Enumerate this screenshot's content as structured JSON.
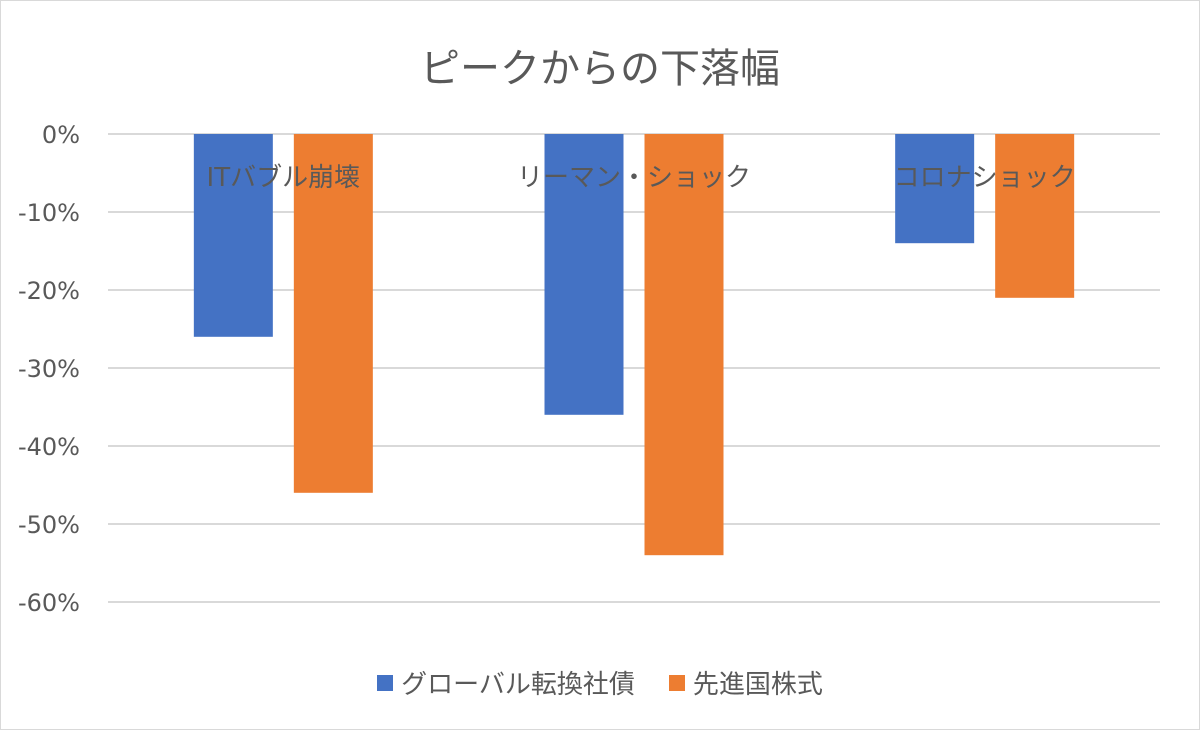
{
  "chart_data": {
    "type": "bar",
    "title": "ピークからの下落幅",
    "categories": [
      "ITバブル崩壊",
      "リーマン・ショック",
      "コロナショック"
    ],
    "series": [
      {
        "name": "グローバル転換社債",
        "color": "#4472c4",
        "values": [
          -26,
          -36,
          -14
        ]
      },
      {
        "name": "先進国株式",
        "color": "#ed7d31",
        "values": [
          -46,
          -54,
          -21
        ]
      }
    ],
    "ylim": [
      -60,
      0
    ],
    "yticks": [
      0,
      -10,
      -20,
      -30,
      -40,
      -50,
      -60
    ],
    "ytick_labels": [
      "0%",
      "-10%",
      "-20%",
      "-30%",
      "-40%",
      "-50%",
      "-60%"
    ],
    "xlabel": "",
    "ylabel": "",
    "grid": true,
    "legend_position": "bottom"
  }
}
